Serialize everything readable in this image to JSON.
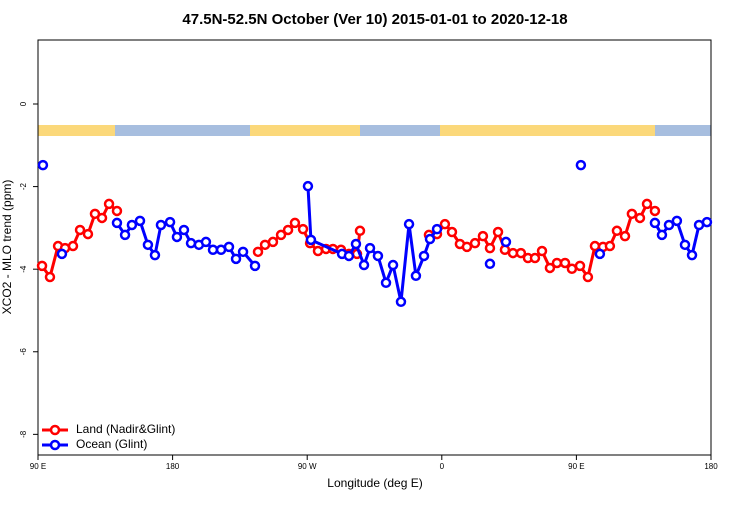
{
  "chart_data": {
    "type": "line",
    "title": "47.5N-52.5N October (Ver 10)   2015-01-01 to 2020-12-18",
    "xlabel": "Longitude (deg E)",
    "ylabel": "XCO2 - MLO trend (ppm)",
    "xlim": [
      90,
      540
    ],
    "xticks": [
      {
        "value": 90,
        "label": "90 E"
      },
      {
        "value": 180,
        "label": "180"
      },
      {
        "value": 270,
        "label": "90 W"
      },
      {
        "value": 360,
        "label": "0"
      },
      {
        "value": 450,
        "label": "90 E"
      },
      {
        "value": 540,
        "label": "180"
      }
    ],
    "ylim": [
      -8.5,
      1.55
    ],
    "yticks": [
      0,
      -2,
      -4,
      -6,
      -8
    ],
    "legend": "bottom-left",
    "series": [
      {
        "name": "Land (Nadir&Glint)",
        "color": "#ff0000",
        "x": [
          92.7,
          98.0,
          103.4,
          108.1,
          113.4,
          118.1,
          123.4,
          128.1,
          132.8,
          137.5,
          142.8,
          null,
          237.1,
          241.8,
          247.1,
          252.5,
          257.2,
          261.8,
          267.2,
          271.9,
          277.2,
          282.6,
          287.2,
          292.6,
          297.9,
          303.3,
          305.3,
          null,
          351.4,
          356.8,
          362.1,
          366.8,
          372.1,
          376.8,
          382.2,
          387.5,
          392.2,
          397.6,
          402.2,
          407.6,
          412.9,
          417.6,
          422.3,
          427.0,
          432.3,
          437.0,
          442.4,
          447.0,
          452.4,
          457.7,
          462.4,
          467.8,
          472.4,
          477.1,
          482.5,
          487.1,
          492.5,
          497.2,
          502.5
        ],
        "values": [
          -3.92,
          -4.19,
          -3.44,
          -3.49,
          -3.44,
          -3.05,
          -3.15,
          -2.66,
          -2.76,
          -2.42,
          -2.59,
          null,
          -3.58,
          -3.41,
          -3.34,
          -3.17,
          -3.05,
          -2.88,
          -3.03,
          -3.37,
          -3.56,
          -3.51,
          -3.51,
          -3.53,
          -3.63,
          -3.63,
          -3.07,
          null,
          -3.17,
          -3.15,
          -2.91,
          -3.1,
          -3.39,
          -3.46,
          -3.37,
          -3.2,
          -3.49,
          -3.1,
          -3.53,
          -3.61,
          -3.61,
          -3.73,
          -3.73,
          -3.56,
          -3.97,
          -3.85,
          -3.85,
          -3.99,
          -3.92,
          -4.19,
          -3.44,
          -3.46,
          -3.44,
          -3.07,
          -3.2,
          -2.66,
          -2.76,
          -2.42,
          -2.59
        ]
      },
      {
        "name": "Ocean (Glint)",
        "color": "#0000ff",
        "x": [
          93.3,
          null,
          106.0,
          null,
          142.8,
          148.2,
          152.8,
          158.2,
          163.5,
          168.2,
          172.2,
          178.3,
          182.9,
          187.6,
          192.3,
          197.6,
          202.3,
          207.0,
          212.4,
          217.7,
          222.4,
          227.1,
          235.1,
          null,
          270.5,
          272.5,
          293.3,
          297.9,
          302.6,
          308.0,
          312.0,
          317.3,
          322.7,
          327.4,
          332.7,
          338.1,
          342.7,
          348.1,
          352.1,
          356.8,
          null,
          392.2,
          null,
          402.9,
          null,
          453.0,
          null,
          465.7,
          null,
          502.5,
          507.2,
          511.9,
          517.2,
          522.6,
          527.3,
          532.0,
          537.3
        ],
        "values": [
          -1.48,
          null,
          -3.63,
          null,
          -2.88,
          -3.17,
          -2.93,
          -2.83,
          -3.41,
          -3.66,
          -2.93,
          -2.86,
          -3.22,
          -3.05,
          -3.37,
          -3.41,
          -3.34,
          -3.53,
          -3.53,
          -3.46,
          -3.75,
          -3.58,
          -3.92,
          null,
          -1.99,
          -3.29,
          -3.63,
          -3.68,
          -3.39,
          -3.9,
          -3.49,
          -3.68,
          -4.33,
          -3.9,
          -4.79,
          -2.91,
          -4.16,
          -3.68,
          -3.27,
          -3.03,
          null,
          -3.87,
          null,
          -3.34,
          null,
          -1.48,
          null,
          -3.63,
          null,
          -2.88,
          -3.17,
          -2.93,
          -2.83,
          -3.41,
          -3.66,
          -2.93,
          -2.86
        ]
      }
    ]
  }
}
